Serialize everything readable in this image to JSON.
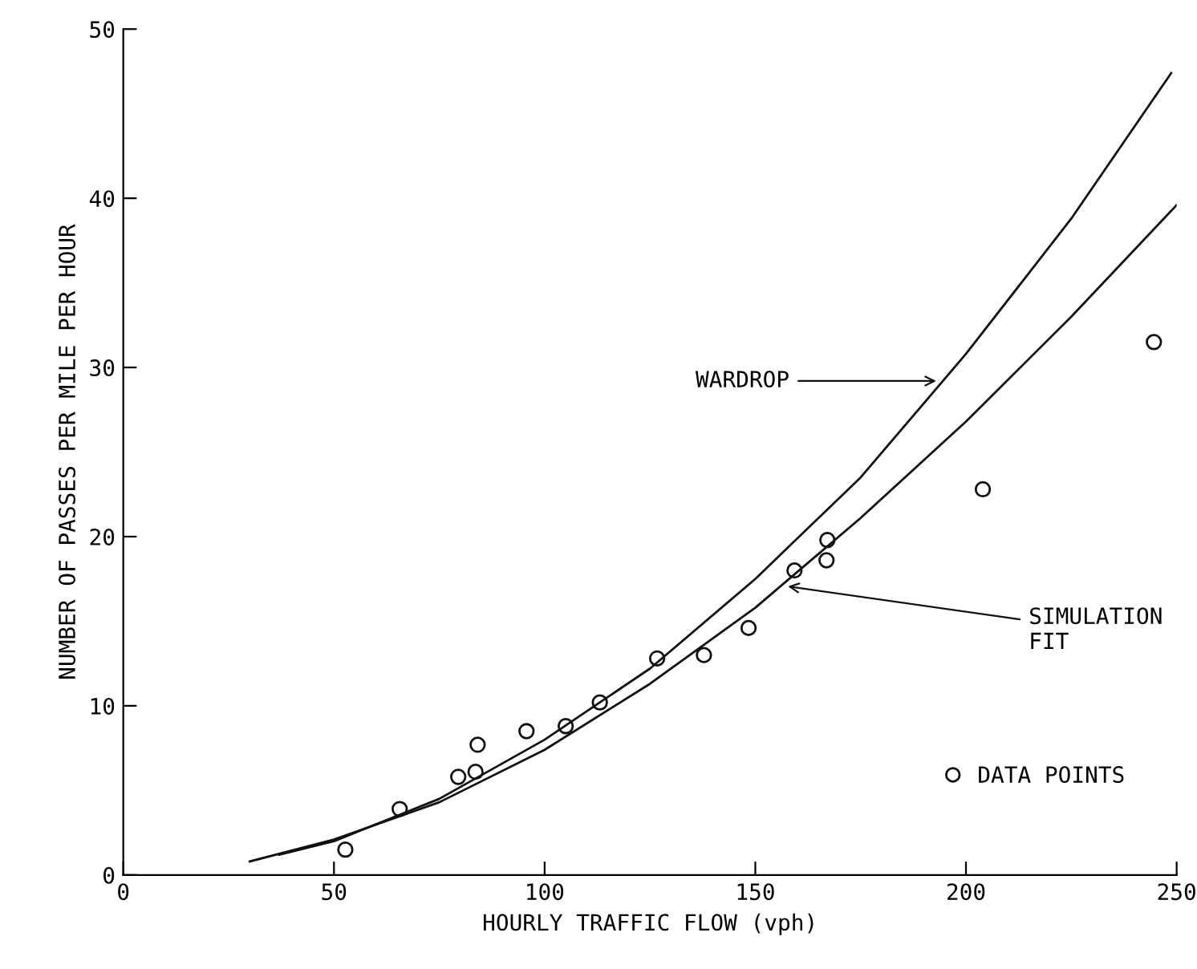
{
  "chart_data": {
    "type": "scatter",
    "xlabel": "HOURLY TRAFFIC FLOW (vph)",
    "ylabel": "NUMBER OF PASSES PER MILE PER HOUR",
    "xlim": [
      0,
      250
    ],
    "ylim": [
      0,
      50
    ],
    "xticks": [
      0,
      50,
      100,
      150,
      200,
      250
    ],
    "yticks": [
      0,
      10,
      20,
      30,
      40,
      50
    ],
    "grid": false,
    "legend": "bottom right",
    "series": [
      {
        "type": "line",
        "marker": "none",
        "color": "#111111",
        "x": [
          37,
          50,
          75,
          100,
          125,
          150,
          175,
          200,
          225,
          248.7
        ],
        "values": [
          1.2,
          2.0,
          4.5,
          8.0,
          12.2,
          17.5,
          23.5,
          30.8,
          38.8,
          47.4
        ]
      },
      {
        "type": "line",
        "marker": "none",
        "color": "#111111",
        "x": [
          30,
          50,
          75,
          100,
          125,
          150,
          175,
          200,
          225,
          250
        ],
        "values": [
          0.8,
          2.1,
          4.3,
          7.4,
          11.3,
          15.8,
          21.1,
          26.8,
          33.0,
          39.6
        ]
      },
      {
        "marker": "circle",
        "name": "DATA POINTS",
        "color": "#111111",
        "x": [
          52.7,
          65.6,
          79.5,
          83.6,
          84.1,
          95.7,
          105,
          113.1,
          126.7,
          137.8,
          148.4,
          159.3,
          166.9,
          167.1,
          204,
          244.6
        ],
        "values": [
          1.5,
          3.9,
          5.8,
          6.1,
          7.7,
          8.5,
          8.8,
          10.2,
          12.8,
          13,
          14.6,
          18,
          18.6,
          19.8,
          22.8,
          31.5
        ]
      }
    ],
    "annotations": [
      {
        "text": "WARDROP",
        "x": 194,
        "y": 29.2
      },
      {
        "text": "SIMULATION\nFIT",
        "x": 156.7,
        "y": 17.1
      }
    ]
  }
}
